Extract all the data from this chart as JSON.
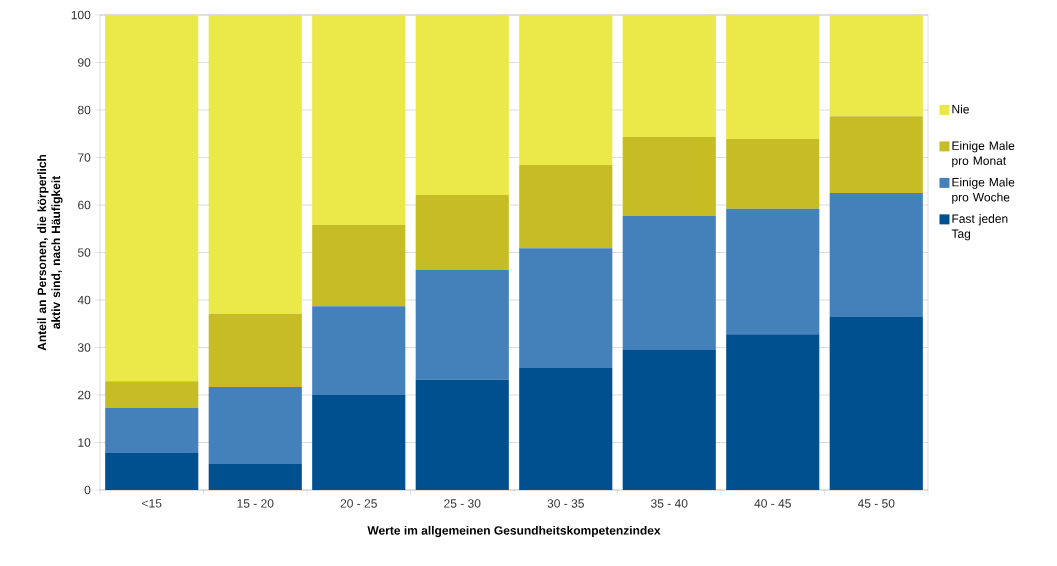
{
  "chart_data": {
    "type": "bar",
    "stacked": true,
    "xlabel": "Werte im allgemeinen Gesundheitskompetenzindex",
    "ylabel": "Anteil an Personen, die körperlich aktiv sind, nach Häufigkeit",
    "categories": [
      "<15",
      "15 - 20",
      "20 - 25",
      "25 - 30",
      "30 - 35",
      "35 - 40",
      "40 - 45",
      "45 - 50"
    ],
    "series": [
      {
        "name": "Fast jeden Tag",
        "color": "#004f8f",
        "values": [
          7.8,
          5.5,
          20.0,
          23.2,
          25.7,
          29.5,
          32.8,
          36.4
        ]
      },
      {
        "name": "Einige Male pro Woche",
        "color": "#4480b9",
        "values": [
          9.5,
          16.2,
          18.7,
          23.1,
          25.2,
          28.2,
          26.4,
          26.1
        ]
      },
      {
        "name": "Einige Male pro Monat",
        "color": "#c6bd25",
        "values": [
          5.6,
          15.4,
          17.1,
          15.8,
          17.5,
          16.6,
          14.7,
          16.2
        ]
      },
      {
        "name": "Nie",
        "color": "#ebe84a",
        "values": [
          77.1,
          62.9,
          44.2,
          37.9,
          31.6,
          25.7,
          26.1,
          21.3
        ]
      }
    ],
    "ylim": [
      0,
      100
    ],
    "yticks": [
      0,
      10,
      20,
      30,
      40,
      50,
      60,
      70,
      80,
      90,
      100
    ],
    "grid": "y",
    "legend": "right"
  }
}
